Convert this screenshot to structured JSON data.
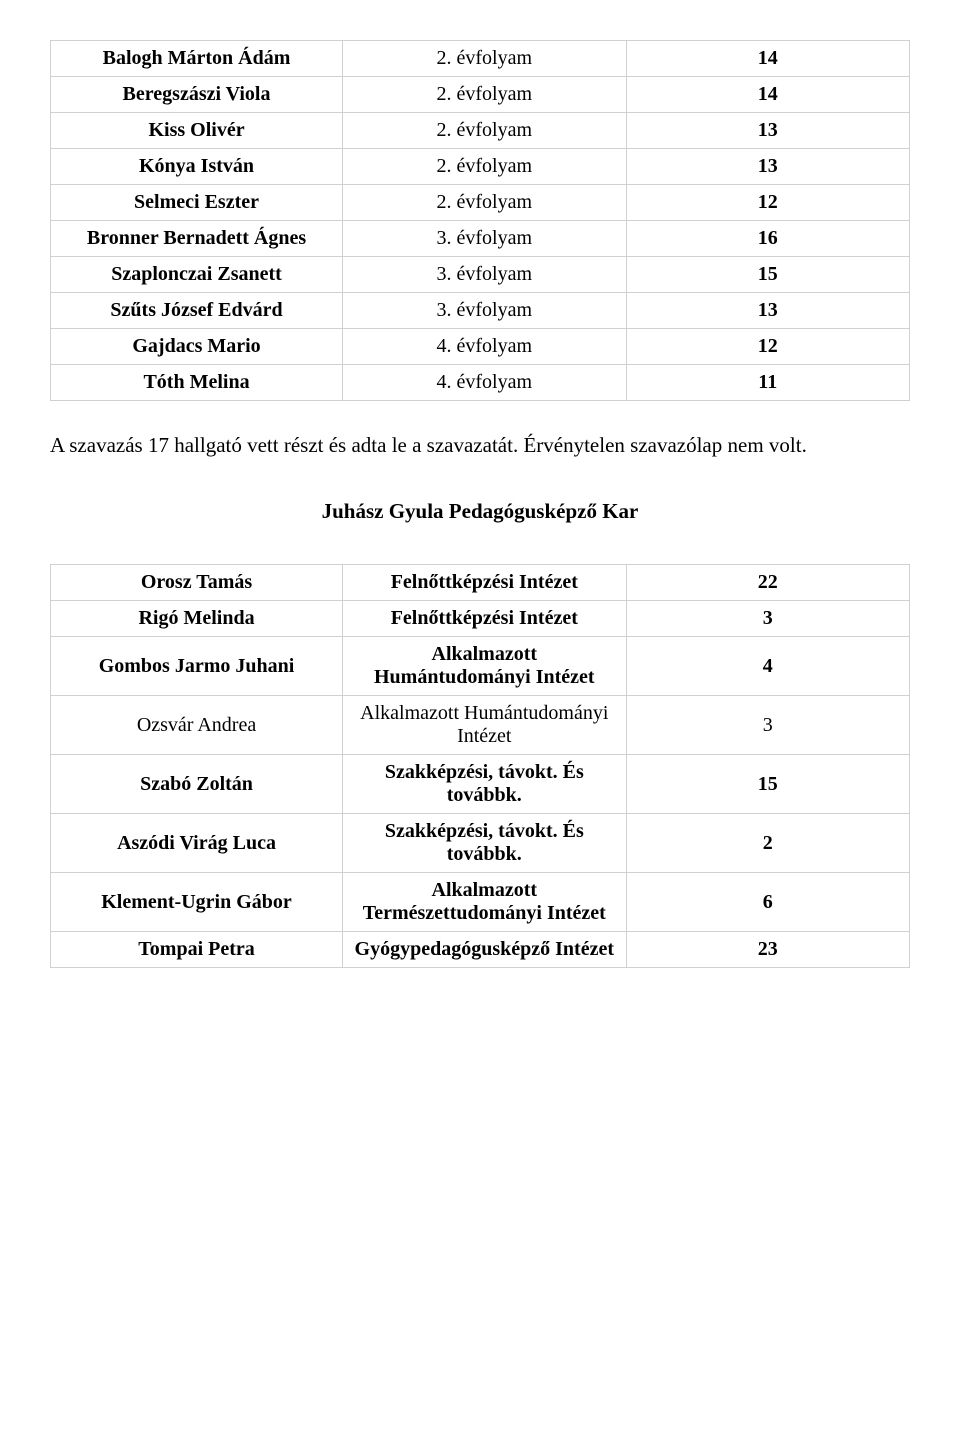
{
  "table1": {
    "rows": [
      {
        "name": "Balogh Márton Ádám",
        "grade": "2. évfolyam",
        "score": "14",
        "name_bold": true,
        "grade_bold": false
      },
      {
        "name": "Beregszászi Viola",
        "grade": "2. évfolyam",
        "score": "14",
        "name_bold": true,
        "grade_bold": false
      },
      {
        "name": "Kiss Olivér",
        "grade": "2. évfolyam",
        "score": "13",
        "name_bold": true,
        "grade_bold": false
      },
      {
        "name": "Kónya István",
        "grade": "2. évfolyam",
        "score": "13",
        "name_bold": true,
        "grade_bold": false
      },
      {
        "name": "Selmeci Eszter",
        "grade": "2. évfolyam",
        "score": "12",
        "name_bold": true,
        "grade_bold": false
      },
      {
        "name": "Bronner Bernadett Ágnes",
        "grade": "3. évfolyam",
        "score": "16",
        "name_bold": true,
        "grade_bold": false
      },
      {
        "name": "Szaplonczai Zsanett",
        "grade": "3. évfolyam",
        "score": "15",
        "name_bold": true,
        "grade_bold": false
      },
      {
        "name": "Szűts József Edvárd",
        "grade": "3. évfolyam",
        "score": "13",
        "name_bold": true,
        "grade_bold": false
      },
      {
        "name": "Gajdacs Mario",
        "grade": "4. évfolyam",
        "score": "12",
        "name_bold": true,
        "grade_bold": false
      },
      {
        "name": "Tóth Melina",
        "grade": "4. évfolyam",
        "score": "11",
        "name_bold": true,
        "grade_bold": false
      }
    ]
  },
  "paragraph": "A szavazás 17 hallgató vett részt és adta le a szavazatát. Érvénytelen szavazólap nem volt.",
  "section_title": "Juhász Gyula Pedagógusképző Kar",
  "table2": {
    "rows": [
      {
        "name": "Orosz Tamás",
        "inst": "Felnőttképzési Intézet",
        "score": "22",
        "name_bold": true,
        "inst_bold": true,
        "score_bold": true
      },
      {
        "name": "Rigó Melinda",
        "inst": "Felnőttképzési Intézet",
        "score": "3",
        "name_bold": true,
        "inst_bold": true,
        "score_bold": true
      },
      {
        "name": "Gombos Jarmo Juhani",
        "inst": "Alkalmazott Humántudományi Intézet",
        "score": "4",
        "name_bold": true,
        "inst_bold": true,
        "score_bold": true
      },
      {
        "name": "Ozsvár Andrea",
        "inst": "Alkalmazott Humántudományi Intézet",
        "score": "3",
        "name_bold": false,
        "inst_bold": false,
        "score_bold": false
      },
      {
        "name": "Szabó Zoltán",
        "inst": "Szakképzési, távokt. És továbbk.",
        "score": "15",
        "name_bold": true,
        "inst_bold": true,
        "score_bold": true
      },
      {
        "name": "Aszódi Virág Luca",
        "inst": "Szakképzési, távokt. És továbbk.",
        "score": "2",
        "name_bold": true,
        "inst_bold": true,
        "score_bold": true
      },
      {
        "name": "Klement-Ugrin Gábor",
        "inst": "Alkalmazott Természettudományi Intézet",
        "score": "6",
        "name_bold": true,
        "inst_bold": true,
        "score_bold": true
      },
      {
        "name": "Tompai Petra",
        "inst": "Gyógypedagógusképző Intézet",
        "score": "23",
        "name_bold": true,
        "inst_bold": true,
        "score_bold": true
      }
    ]
  }
}
